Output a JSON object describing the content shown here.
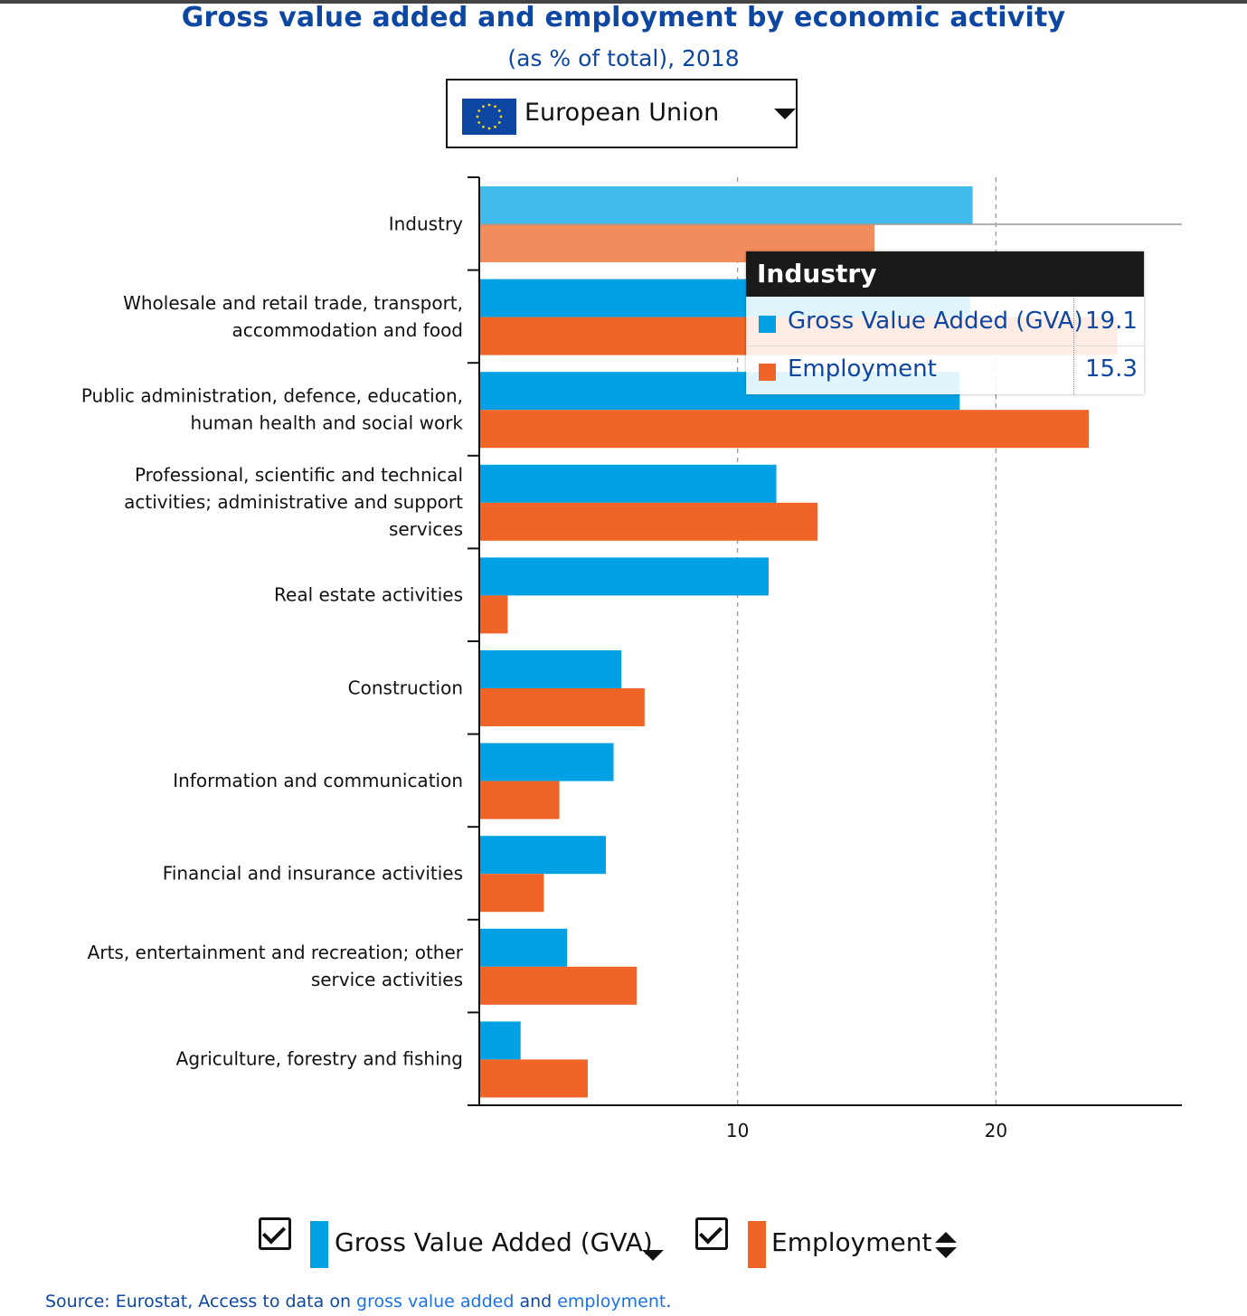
{
  "header": {
    "title": "Gross value added and employment by economic activity",
    "subtitle": "(as % of total), 2018"
  },
  "selector": {
    "label": "European Union",
    "icon": "eu-flag-icon"
  },
  "colors": {
    "gva": "#00a1e4",
    "gva_highlight": "#40bbeb",
    "employment": "#f06428",
    "employment_highlight": "#f38c5d",
    "title": "#0e47a1"
  },
  "chart_data": {
    "type": "bar",
    "orientation": "horizontal",
    "title": "Gross value added and employment by economic activity",
    "subtitle": "(as % of total), 2018",
    "categories": [
      "Industry",
      "Wholesale and retail trade, transport, accommodation and food",
      "Public administration, defence, education, human health and social work",
      "Professional, scientific and technical activities; administrative and support services",
      "Real estate activities",
      "Construction",
      "Information and communication",
      "Financial and insurance activities",
      "Arts, entertainment and recreation; other service activities",
      "Agriculture, forestry and fishing"
    ],
    "category_lines": [
      [
        "Industry"
      ],
      [
        "Wholesale and retail trade, transport,",
        "accommodation and food"
      ],
      [
        "Public administration, defence, education,",
        "human health and social work"
      ],
      [
        "Professional, scientific and technical",
        "activities; administrative and support",
        "services"
      ],
      [
        "Real estate activities"
      ],
      [
        "Construction"
      ],
      [
        "Information and communication"
      ],
      [
        "Financial and insurance activities"
      ],
      [
        "Arts, entertainment and recreation; other",
        "service activities"
      ],
      [
        "Agriculture, forestry and fishing"
      ]
    ],
    "series": [
      {
        "name": "Gross Value Added (GVA)",
        "color": "#00a1e4",
        "values": [
          19.1,
          19.0,
          18.6,
          11.5,
          11.2,
          5.5,
          5.2,
          4.9,
          3.4,
          1.6
        ]
      },
      {
        "name": "Employment",
        "color": "#f06428",
        "values": [
          15.3,
          24.7,
          23.6,
          13.1,
          1.1,
          6.4,
          3.1,
          2.5,
          6.1,
          4.2
        ]
      }
    ],
    "xlim": [
      0,
      27.2
    ],
    "xticks": [
      10,
      20
    ],
    "xtick_labels": [
      "10",
      "20"
    ],
    "grid": "vertical-dashed",
    "legend_position": "bottom",
    "highlighted_category": "Industry"
  },
  "tooltip": {
    "title": "Industry",
    "rows": [
      {
        "name": "Gross Value Added (GVA)",
        "value": "19.1",
        "color": "#00a1e4"
      },
      {
        "name": "Employment",
        "value": "15.3",
        "color": "#f06428"
      }
    ]
  },
  "legend": {
    "items": [
      {
        "label": "Gross Value Added (GVA)",
        "color": "#00a1e4",
        "checked": true,
        "sort": "descending"
      },
      {
        "label": "Employment",
        "color": "#f06428",
        "checked": true,
        "sort": "unsorted"
      }
    ]
  },
  "source": {
    "prefix": "Source: Eurostat, Access to data on ",
    "link1": "gross value added",
    "middle": " and ",
    "link2": "employment",
    "suffix": "."
  }
}
